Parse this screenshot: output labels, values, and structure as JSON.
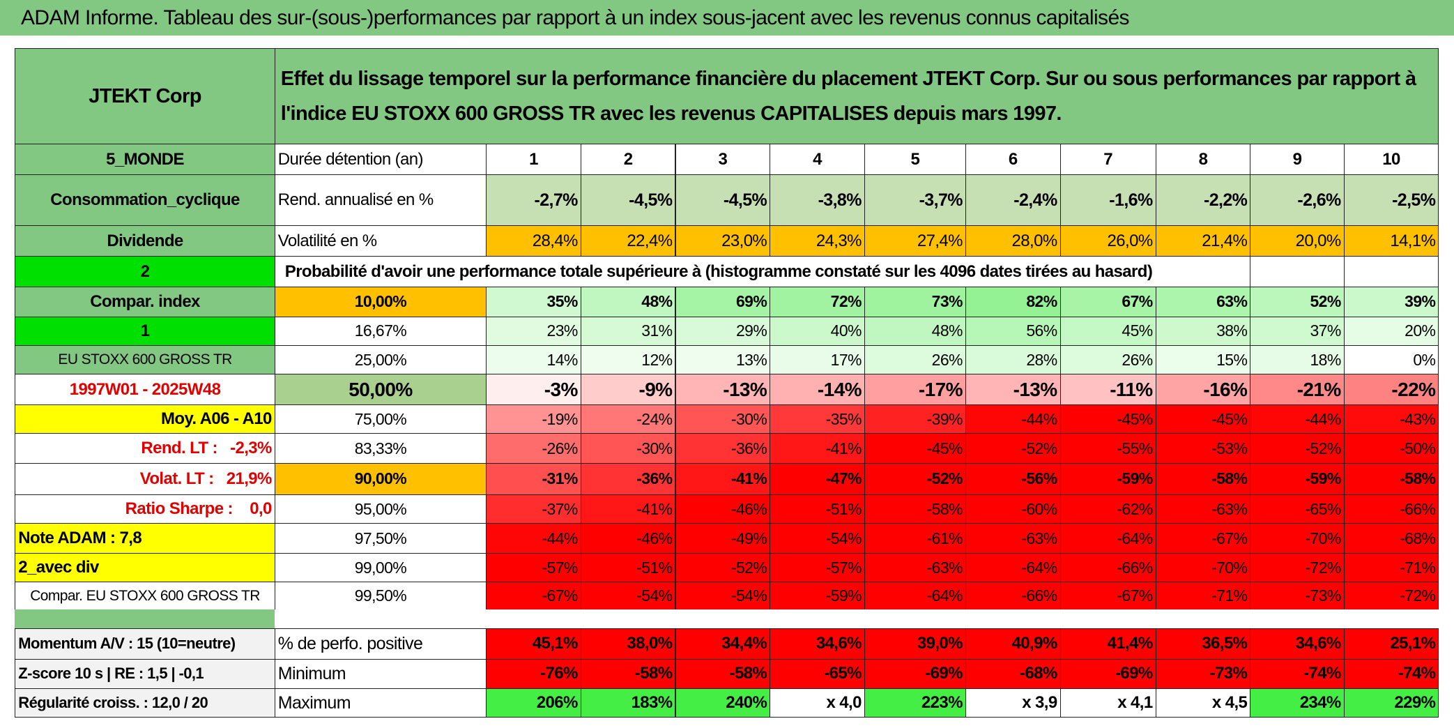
{
  "title": "ADAM Informe. Tableau des sur-(sous-)performances par rapport à un index sous-jacent avec les revenus connus capitalisés",
  "header": {
    "name": "JTEKT Corp",
    "description": "Effet du lissage temporel sur la performance financière du placement JTEKT Corp. Sur ou sous performances par rapport à l'indice EU STOXX 600 GROSS TR avec les revenus CAPITALISES depuis mars 1997."
  },
  "side_labels": [
    "5_MONDE",
    "Consommation_cyclique",
    "Dividende",
    "2",
    "Compar. index",
    "1",
    "EU STOXX 600 GROSS TR",
    "1997W01 - 2025W48",
    "Moy. A06 - A10",
    "Rend. LT :   -2,3%",
    "Volat. LT :   21,9%",
    "Ratio Sharpe :    0,0",
    "Note ADAM : 7,8",
    "2_avec div",
    "Compar. EU STOXX 600 GROSS TR"
  ],
  "stats_labels": [
    "Momentum A/V : 15 (10=neutre)",
    "Z-score 10 s | RE : 1,5 | -0,1",
    "Régularité croiss. : 12,0 / 20"
  ],
  "durations": {
    "label": "Durée détention (an)",
    "values": [
      1,
      2,
      3,
      4,
      5,
      6,
      7,
      8,
      9,
      10
    ]
  },
  "annual_return": {
    "label": "Rend. annualisé en %",
    "values": [
      "-2,7%",
      "-4,5%",
      "-4,5%",
      "-3,8%",
      "-3,7%",
      "-2,4%",
      "-1,6%",
      "-2,2%",
      "-2,6%",
      "-2,5%"
    ]
  },
  "volatility": {
    "label": "Volatilité en %",
    "values": [
      "28,4%",
      "22,4%",
      "23,0%",
      "24,3%",
      "27,4%",
      "28,0%",
      "26,0%",
      "21,4%",
      "20,0%",
      "14,1%"
    ]
  },
  "probability_caption": "Probabilité d'avoir une performance totale supérieure à (histogramme constaté sur les 4096 dates tirées au hasard)",
  "percentiles": [
    {
      "label": "10,00%",
      "values": [
        "35%",
        "48%",
        "69%",
        "72%",
        "73%",
        "82%",
        "67%",
        "63%",
        "52%",
        "39%"
      ]
    },
    {
      "label": "16,67%",
      "values": [
        "23%",
        "31%",
        "29%",
        "40%",
        "48%",
        "56%",
        "45%",
        "38%",
        "37%",
        "20%"
      ]
    },
    {
      "label": "25,00%",
      "values": [
        "14%",
        "12%",
        "13%",
        "17%",
        "26%",
        "28%",
        "26%",
        "15%",
        "18%",
        "0%"
      ]
    },
    {
      "label": "50,00%",
      "values": [
        "-3%",
        "-9%",
        "-13%",
        "-14%",
        "-17%",
        "-13%",
        "-11%",
        "-16%",
        "-21%",
        "-22%"
      ]
    },
    {
      "label": "75,00%",
      "values": [
        "-19%",
        "-24%",
        "-30%",
        "-35%",
        "-39%",
        "-44%",
        "-45%",
        "-45%",
        "-44%",
        "-43%"
      ]
    },
    {
      "label": "83,33%",
      "values": [
        "-26%",
        "-30%",
        "-36%",
        "-41%",
        "-45%",
        "-52%",
        "-55%",
        "-53%",
        "-52%",
        "-50%"
      ]
    },
    {
      "label": "90,00%",
      "values": [
        "-31%",
        "-36%",
        "-41%",
        "-47%",
        "-52%",
        "-56%",
        "-59%",
        "-58%",
        "-59%",
        "-58%"
      ]
    },
    {
      "label": "95,00%",
      "values": [
        "-37%",
        "-41%",
        "-46%",
        "-51%",
        "-58%",
        "-60%",
        "-62%",
        "-63%",
        "-65%",
        "-66%"
      ]
    },
    {
      "label": "97,50%",
      "values": [
        "-44%",
        "-46%",
        "-49%",
        "-54%",
        "-61%",
        "-63%",
        "-64%",
        "-67%",
        "-70%",
        "-68%"
      ]
    },
    {
      "label": "99,00%",
      "values": [
        "-57%",
        "-51%",
        "-52%",
        "-57%",
        "-63%",
        "-64%",
        "-66%",
        "-70%",
        "-72%",
        "-71%"
      ]
    },
    {
      "label": "99,50%",
      "values": [
        "-67%",
        "-54%",
        "-54%",
        "-59%",
        "-64%",
        "-66%",
        "-67%",
        "-71%",
        "-73%",
        "-72%"
      ]
    }
  ],
  "summary": [
    {
      "label": "% de perfo. positive",
      "values": [
        "45,1%",
        "38,0%",
        "34,4%",
        "34,6%",
        "39,0%",
        "40,9%",
        "41,4%",
        "36,5%",
        "34,6%",
        "25,1%"
      ]
    },
    {
      "label": "Minimum",
      "values": [
        "-76%",
        "-58%",
        "-58%",
        "-65%",
        "-69%",
        "-68%",
        "-69%",
        "-73%",
        "-74%",
        "-74%"
      ]
    },
    {
      "label": "Maximum",
      "values": [
        "206%",
        "183%",
        "240%",
        "x 4,0",
        "223%",
        "x 3,9",
        "x 4,1",
        "x 4,5",
        "234%",
        "229%"
      ]
    }
  ]
}
